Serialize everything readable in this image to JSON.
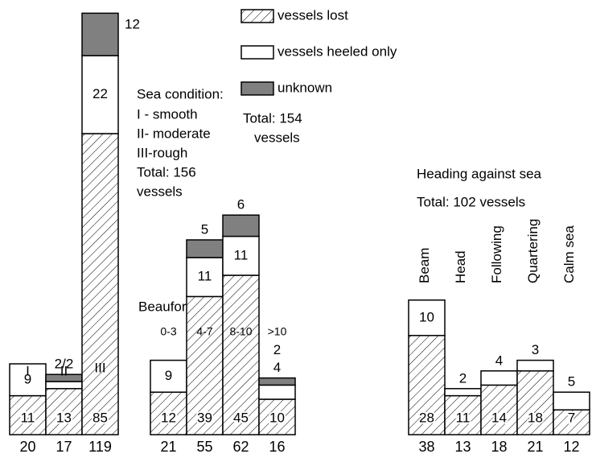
{
  "chart_data": [
    {
      "type": "stacked-bar",
      "title": "Sea condition:",
      "notes": [
        "I - smooth",
        "II- moderate",
        "III-rough",
        "Total: 156",
        "vessels"
      ],
      "categories": [
        "I",
        "II",
        "III"
      ],
      "series": [
        {
          "name": "vessels lost",
          "color": "#ffffff",
          "pattern": "hatch",
          "values": [
            11,
            13,
            85
          ]
        },
        {
          "name": "vessels heeled only",
          "color": "#ffffff",
          "values": [
            9,
            2,
            22
          ],
          "value_labels": [
            "9",
            null,
            "22"
          ]
        },
        {
          "name": "unknown",
          "color": "#808080",
          "values": [
            null,
            2,
            12
          ],
          "value_labels": [
            null,
            null,
            "12"
          ]
        }
      ],
      "annotations": [
        {
          "category": 1,
          "text": "2/2"
        }
      ],
      "totals": [
        20,
        17,
        119
      ]
    },
    {
      "type": "stacked-bar",
      "title": "Beaufort:",
      "notes": [
        "Total: 154",
        "vessels"
      ],
      "categories": [
        "0-3",
        "4-7",
        "8-10",
        ">10"
      ],
      "series": [
        {
          "color": "#ffffff",
          "pattern": "hatch",
          "values": [
            12,
            39,
            45,
            10
          ]
        },
        {
          "color": "#ffffff",
          "values": [
            9,
            11,
            11,
            4
          ]
        },
        {
          "color": "#808080",
          "values": [
            null,
            5,
            6,
            2
          ]
        }
      ],
      "totals": [
        21,
        55,
        62,
        16
      ]
    },
    {
      "type": "stacked-bar",
      "title": "Heading against sea",
      "notes": [
        "Total:  102 vessels"
      ],
      "categories": [
        "Beam",
        "Head",
        "Following",
        "Quartering",
        "Calm sea"
      ],
      "series": [
        {
          "color": "#ffffff",
          "pattern": "hatch",
          "values": [
            28,
            11,
            14,
            18,
            7
          ]
        },
        {
          "color": "#ffffff",
          "values": [
            10,
            2,
            4,
            3,
            5
          ]
        }
      ],
      "totals": [
        38,
        13,
        18,
        21,
        12
      ]
    }
  ]
}
